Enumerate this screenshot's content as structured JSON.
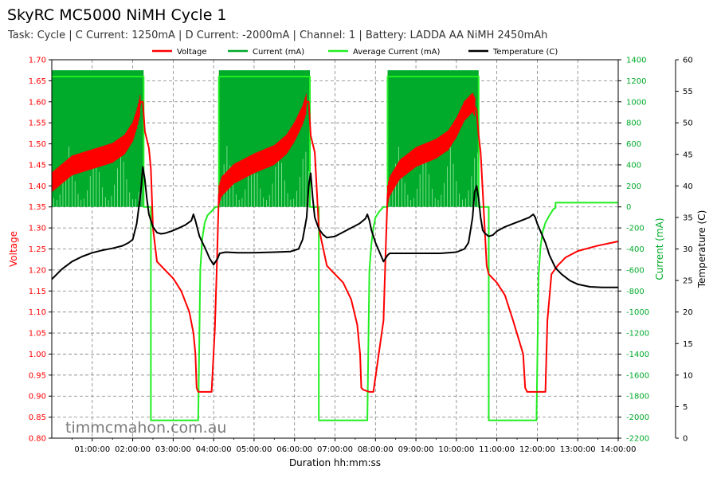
{
  "title": "SkyRC MC5000 NiMH Cycle 1",
  "subtitle": "Task: Cycle | C Current: 1250mA | D Current: -2000mA | Channel: 1 | Battery: LADDA AA NiMH 2450mAh",
  "watermark": "timmcmahon.com.au",
  "colors": {
    "voltage": "#ff0000",
    "current": "#00aa2a",
    "avg_current": "#22ee22",
    "temperature": "#000000",
    "left_axis": "#ff0000",
    "right_axis": "#00aa2a",
    "grid": "#808080"
  },
  "chart_data": {
    "type": "line",
    "title": "SkyRC MC5000 NiMH Cycle 1",
    "xlabel": "Duration hh:mm:ss",
    "ylabel_left": "Voltage",
    "ylabel_right": "Current (mA)",
    "ylabel_far_right": "Temperature (C)",
    "xlim_hours": [
      0,
      14.0
    ],
    "ylim_voltage": [
      0.8,
      1.7
    ],
    "ylim_current": [
      -2200,
      1400
    ],
    "ylim_temperature": [
      0,
      60
    ],
    "grid": true,
    "legend_position": "top-center",
    "x_ticks_hours": [
      1,
      2,
      3,
      4,
      5,
      6,
      7,
      8,
      9,
      10,
      11,
      12,
      13,
      14
    ],
    "x_tick_labels": [
      "01:00:00",
      "02:00:00",
      "03:00:00",
      "04:00:00",
      "05:00:00",
      "06:00:00",
      "07:00:00",
      "08:00:00",
      "09:00:00",
      "10:00:00",
      "11:00:00",
      "12:00:00",
      "13:00:00",
      "14:00:00"
    ],
    "y_ticks_voltage": [
      "0.80",
      "0.85",
      "0.90",
      "0.95",
      "1.00",
      "1.05",
      "1.10",
      "1.15",
      "1.20",
      "1.25",
      "1.30",
      "1.35",
      "1.40",
      "1.45",
      "1.50",
      "1.55",
      "1.60",
      "1.65",
      "1.70"
    ],
    "y_ticks_current": [
      "-2200",
      "-2000",
      "-1800",
      "-1600",
      "-1400",
      "-1200",
      "-1000",
      "-800",
      "-600",
      "-400",
      "-200",
      "0",
      "200",
      "400",
      "600",
      "800",
      "1000",
      "1200",
      "1400"
    ],
    "y_ticks_temperature": [
      "0",
      "5",
      "10",
      "15",
      "20",
      "25",
      "30",
      "35",
      "40",
      "45",
      "50",
      "55",
      "60"
    ],
    "legend": [
      "Voltage",
      "Current (mA)",
      "Average Current (mA)",
      "Temperature (C)"
    ],
    "charge_phases": [
      [
        0.0,
        2.27
      ],
      [
        4.13,
        6.38
      ],
      [
        8.3,
        10.55
      ]
    ],
    "charge_pulse_mA": [
      0,
      1300
    ],
    "charge_avg_mA": 1240,
    "series": [
      {
        "name": "Voltage",
        "x": [
          0.0,
          0.5,
          1.0,
          1.5,
          1.8,
          2.0,
          2.1,
          2.2,
          2.25,
          2.3,
          2.4,
          2.45,
          2.5,
          2.6,
          2.8,
          3.0,
          3.2,
          3.4,
          3.5,
          3.55,
          3.58,
          3.62,
          3.85,
          3.95,
          4.03,
          4.08,
          4.13,
          4.2,
          4.5,
          5.0,
          5.5,
          5.8,
          6.0,
          6.2,
          6.3,
          6.35,
          6.4,
          6.5,
          6.6,
          6.8,
          7.0,
          7.2,
          7.4,
          7.55,
          7.62,
          7.65,
          7.7,
          7.85,
          7.95,
          8.2,
          8.25,
          8.3,
          8.35,
          8.6,
          9.0,
          9.5,
          9.8,
          10.0,
          10.2,
          10.4,
          10.5,
          10.55,
          10.6,
          10.7,
          10.75,
          10.8,
          11.0,
          11.2,
          11.4,
          11.65,
          11.7,
          11.75,
          11.8,
          11.95,
          12.2,
          12.25,
          12.35,
          12.5,
          12.7,
          13.0,
          13.5,
          14.0
        ],
        "values": [
          1.41,
          1.45,
          1.465,
          1.48,
          1.5,
          1.53,
          1.56,
          1.6,
          1.6,
          1.53,
          1.49,
          1.44,
          1.3,
          1.22,
          1.2,
          1.18,
          1.15,
          1.1,
          1.05,
          1.0,
          0.92,
          0.91,
          0.91,
          0.91,
          1.06,
          1.21,
          1.38,
          1.4,
          1.43,
          1.455,
          1.475,
          1.5,
          1.53,
          1.57,
          1.6,
          1.6,
          1.52,
          1.48,
          1.3,
          1.21,
          1.19,
          1.17,
          1.13,
          1.07,
          1.0,
          0.92,
          0.915,
          0.91,
          0.91,
          1.08,
          1.24,
          1.38,
          1.4,
          1.44,
          1.47,
          1.49,
          1.51,
          1.54,
          1.58,
          1.6,
          1.58,
          1.52,
          1.48,
          1.3,
          1.21,
          1.19,
          1.17,
          1.14,
          1.08,
          1.0,
          0.92,
          0.91,
          0.91,
          0.91,
          0.91,
          1.08,
          1.19,
          1.21,
          1.23,
          1.245,
          1.258,
          1.268
        ]
      },
      {
        "name": "Average Current (mA)",
        "x": [
          0.0,
          2.27,
          2.27,
          2.45,
          2.45,
          3.62,
          3.67,
          3.72,
          3.78,
          3.85,
          3.95,
          4.05,
          4.13,
          4.13,
          6.38,
          6.38,
          6.6,
          6.6,
          7.8,
          7.85,
          7.9,
          7.95,
          8.0,
          8.1,
          8.2,
          8.3,
          8.3,
          10.55,
          10.55,
          10.8,
          10.8,
          11.98,
          12.03,
          12.08,
          12.13,
          12.2,
          12.3,
          12.35,
          12.4,
          12.45,
          12.45,
          14.0
        ],
        "values": [
          1240,
          1240,
          0,
          0,
          -2030,
          -2030,
          -600,
          -300,
          -150,
          -80,
          -40,
          0,
          0,
          1240,
          1240,
          0,
          0,
          -2030,
          -2030,
          -600,
          -350,
          -200,
          -100,
          -40,
          0,
          0,
          1240,
          1240,
          0,
          0,
          -2030,
          -2030,
          -650,
          -380,
          -240,
          -150,
          -80,
          -50,
          -20,
          -10,
          40,
          40
        ]
      },
      {
        "name": "Temperature (C)",
        "x": [
          0.0,
          0.25,
          0.5,
          0.75,
          1.0,
          1.25,
          1.5,
          1.75,
          1.9,
          2.0,
          2.1,
          2.2,
          2.25,
          2.3,
          2.35,
          2.4,
          2.5,
          2.6,
          2.7,
          2.8,
          2.95,
          3.1,
          3.3,
          3.45,
          3.5,
          3.55,
          3.65,
          3.8,
          3.9,
          4.0,
          4.1,
          4.15,
          4.3,
          4.6,
          5.0,
          5.5,
          5.9,
          6.1,
          6.2,
          6.3,
          6.35,
          6.4,
          6.45,
          6.5,
          6.6,
          6.7,
          6.8,
          7.0,
          7.3,
          7.6,
          7.75,
          7.8,
          7.85,
          7.9,
          8.0,
          8.1,
          8.2,
          8.3,
          8.35,
          8.5,
          8.8,
          9.2,
          9.6,
          10.0,
          10.2,
          10.3,
          10.4,
          10.45,
          10.5,
          10.55,
          10.6,
          10.65,
          10.7,
          10.8,
          10.9,
          11.0,
          11.2,
          11.4,
          11.6,
          11.8,
          11.9,
          11.95,
          12.0,
          12.1,
          12.2,
          12.3,
          12.45,
          12.6,
          12.8,
          13.0,
          13.3,
          13.6,
          14.0
        ],
        "values": [
          25.2,
          26.8,
          28.0,
          28.8,
          29.4,
          29.8,
          30.1,
          30.5,
          31.0,
          31.5,
          34.0,
          39.0,
          43.0,
          41.0,
          38.0,
          35.5,
          33.5,
          32.6,
          32.4,
          32.5,
          32.8,
          33.2,
          33.8,
          34.5,
          35.5,
          34.5,
          32.0,
          30.0,
          28.5,
          27.5,
          28.5,
          29.3,
          29.5,
          29.4,
          29.4,
          29.5,
          29.6,
          30.0,
          31.5,
          35.0,
          40.0,
          42.0,
          38.0,
          35.0,
          33.2,
          32.3,
          31.8,
          32.0,
          33.0,
          34.0,
          34.8,
          35.5,
          34.5,
          33.0,
          31.0,
          29.5,
          28.0,
          29.0,
          29.3,
          29.3,
          29.3,
          29.3,
          29.3,
          29.5,
          30.0,
          31.0,
          35.0,
          39.0,
          40.0,
          38.0,
          35.0,
          33.0,
          32.5,
          32.0,
          32.2,
          32.8,
          33.5,
          34.0,
          34.5,
          35.0,
          35.5,
          35.0,
          34.0,
          32.5,
          31.0,
          29.0,
          27.0,
          26.0,
          25.0,
          24.4,
          24.0,
          23.9,
          23.9
        ]
      }
    ]
  }
}
